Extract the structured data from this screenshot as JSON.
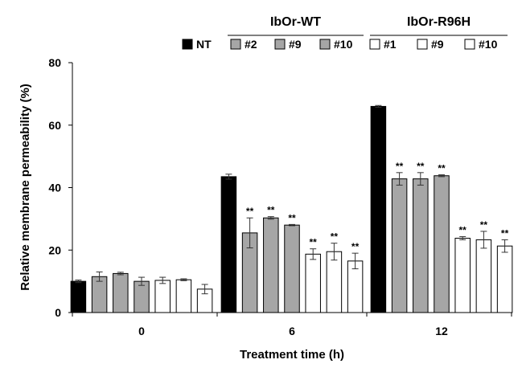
{
  "chart_data": {
    "type": "bar",
    "xlabel": "Treatment time (h)",
    "ylabel": "Relative membrane permeability (%)",
    "ylim": [
      0,
      80
    ],
    "yticks": [
      0,
      20,
      40,
      60,
      80
    ],
    "categories": [
      "0",
      "6",
      "12"
    ],
    "legend_groups": [
      {
        "label": "IbOr-WT",
        "series": [
          "#2",
          "#9",
          "#10"
        ]
      },
      {
        "label": "IbOr-R96H",
        "series": [
          "#1",
          "#9",
          "#10"
        ]
      }
    ],
    "series": [
      {
        "name": "NT",
        "fill": "#000000",
        "values": [
          10.0,
          43.5,
          66.0
        ],
        "errors": [
          0.4,
          0.8,
          0.3
        ],
        "significance": [
          "",
          "",
          ""
        ]
      },
      {
        "name": "#2",
        "fill": "#a6a6a6",
        "values": [
          11.5,
          25.5,
          42.8
        ],
        "errors": [
          1.5,
          4.8,
          2.0
        ],
        "significance": [
          "",
          "**",
          "**"
        ]
      },
      {
        "name": "#9",
        "fill": "#a6a6a6",
        "values": [
          12.5,
          30.3,
          42.8
        ],
        "errors": [
          0.4,
          0.4,
          2.0
        ],
        "significance": [
          "",
          "**",
          "**"
        ]
      },
      {
        "name": "#10",
        "fill": "#a6a6a6",
        "values": [
          10.0,
          28.0,
          43.8
        ],
        "errors": [
          1.3,
          0.2,
          0.3
        ],
        "significance": [
          "",
          "**",
          "**"
        ]
      },
      {
        "name": "#1",
        "fill": "#ffffff",
        "values": [
          10.3,
          18.7,
          23.8
        ],
        "errors": [
          1.0,
          1.7,
          0.5
        ],
        "significance": [
          "",
          "**",
          "**"
        ]
      },
      {
        "name": "#9",
        "fill": "#ffffff",
        "values": [
          10.5,
          19.5,
          23.3
        ],
        "errors": [
          0.3,
          2.7,
          2.7
        ],
        "significance": [
          "",
          "**",
          "**"
        ]
      },
      {
        "name": "#10",
        "fill": "#ffffff",
        "values": [
          7.5,
          16.5,
          21.3
        ],
        "errors": [
          1.5,
          2.5,
          2.0
        ],
        "significance": [
          "",
          "**",
          "**"
        ]
      }
    ]
  }
}
